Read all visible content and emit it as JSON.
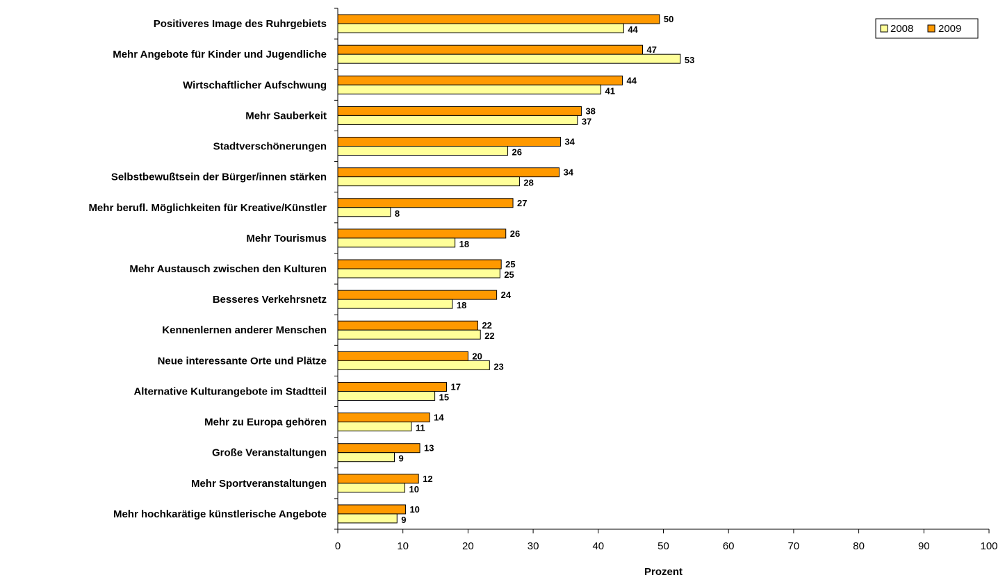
{
  "chart_data": {
    "type": "bar",
    "orientation": "horizontal",
    "categories": [
      "Positiveres Image des Ruhrgebiets",
      "Mehr Angebote für Kinder und Jugendliche",
      "Wirtschaftlicher Aufschwung",
      "Mehr Sauberkeit",
      "Stadtverschönerungen",
      "Selbstbewußtsein der Bürger/innen stärken",
      "Mehr berufl. Möglichkeiten für Kreative/Künstler",
      "Mehr Tourismus",
      "Mehr Austausch zwischen den Kulturen",
      "Besseres Verkehrsnetz",
      "Kennenlernen anderer Menschen",
      "Neue interessante Orte und Plätze",
      "Alternative Kulturangebote im Stadtteil",
      "Mehr zu Europa gehören",
      "Große Veranstaltungen",
      "Mehr Sportveranstaltungen",
      "Mehr hochkarätige künstlerische Angebote"
    ],
    "series": [
      {
        "name": "2008",
        "color": "#FFFF99",
        "values": [
          44,
          53,
          41,
          37,
          26,
          28,
          8,
          18,
          25,
          18,
          22,
          23,
          15,
          11,
          9,
          10,
          9
        ],
        "estimated_lengths": [
          43.9,
          52.6,
          40.4,
          36.8,
          26.1,
          27.9,
          8.1,
          18.0,
          24.9,
          17.6,
          21.9,
          23.3,
          14.9,
          11.3,
          8.7,
          10.3,
          9.1
        ]
      },
      {
        "name": "2009",
        "color": "#FF9900",
        "values": [
          50,
          47,
          44,
          38,
          34,
          34,
          27,
          26,
          25,
          24,
          22,
          20,
          17,
          14,
          13,
          12,
          10
        ],
        "estimated_lengths": [
          49.4,
          46.8,
          43.7,
          37.4,
          34.2,
          34.0,
          26.9,
          25.8,
          25.1,
          24.4,
          21.5,
          20.0,
          16.7,
          14.1,
          12.6,
          12.4,
          10.4
        ]
      }
    ],
    "xlabel": "Prozent",
    "ylabel": "",
    "xlim": [
      0,
      100
    ],
    "xticks": [
      0,
      10,
      20,
      30,
      40,
      50,
      60,
      70,
      80,
      90,
      100
    ],
    "legend_position": "top-right",
    "grid": false
  }
}
